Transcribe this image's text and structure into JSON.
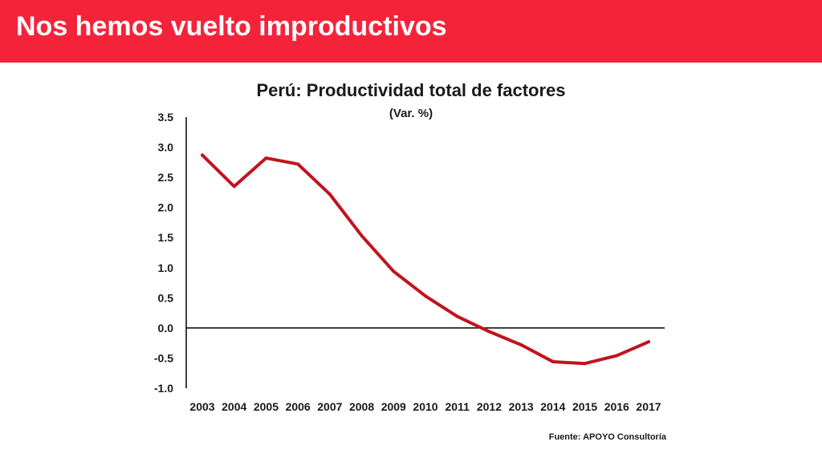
{
  "header": {
    "title": "Nos hemos vuelto improductivos"
  },
  "footer": {
    "source": "Fuente: APOYO Consultoría"
  },
  "colors": {
    "header_bg": "#f5233a",
    "line": "#c0141e",
    "axis": "#000000"
  },
  "chart_data": {
    "type": "line",
    "title": "Perú: Productividad total de factores",
    "subtitle": "(Var. %)",
    "xlabel": "",
    "ylabel": "",
    "categories": [
      "2003",
      "2004",
      "2005",
      "2006",
      "2007",
      "2008",
      "2009",
      "2010",
      "2011",
      "2012",
      "2013",
      "2014",
      "2015",
      "2016",
      "2017"
    ],
    "series": [
      {
        "values": [
          2.87,
          2.35,
          2.82,
          2.72,
          2.22,
          1.53,
          0.94,
          0.53,
          0.19,
          -0.06,
          -0.28,
          -0.56,
          -0.59,
          -0.46,
          -0.23
        ]
      }
    ],
    "ylim": [
      -1.0,
      3.5
    ],
    "yticks": [
      "3.5",
      "3.0",
      "2.5",
      "2.0",
      "1.5",
      "1.0",
      "0.5",
      "0.0",
      "-0.5",
      "-1.0"
    ],
    "ytick_values": [
      3.5,
      3.0,
      2.5,
      2.0,
      1.5,
      1.0,
      0.5,
      0.0,
      -0.5,
      -1.0
    ],
    "grid": false,
    "legend": "none"
  }
}
